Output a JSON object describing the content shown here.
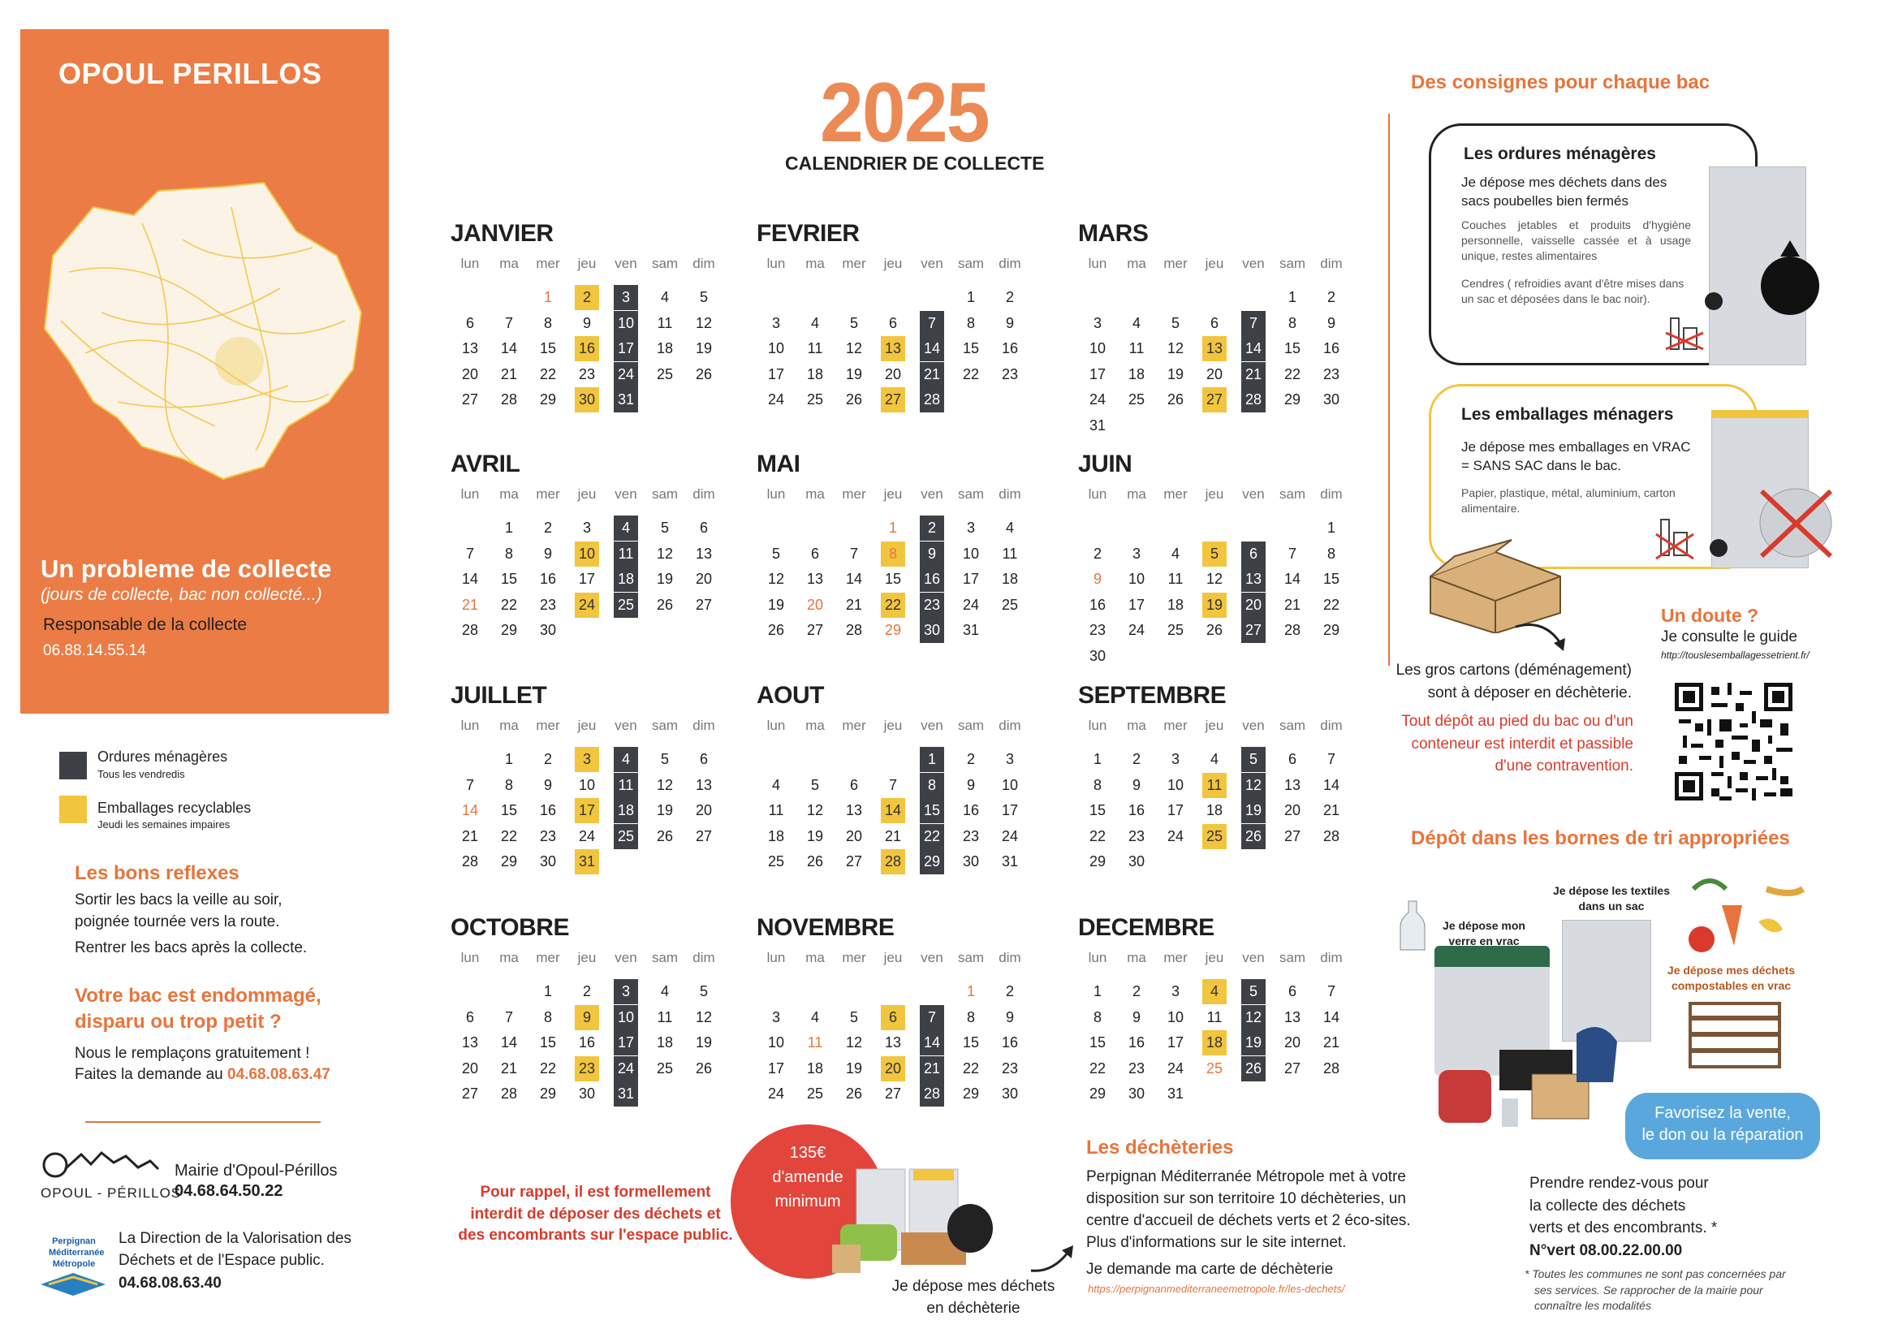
{
  "left": {
    "town": "OPOUL PERILLOS",
    "probleme_title": "Un probleme de collecte",
    "probleme_sub": "(jours de collecte, bac non collecté...)",
    "responsable": "Responsable de la collecte",
    "responsable_phone": "06.88.14.55.14",
    "legend": [
      {
        "label": "Ordures ménagères",
        "sub": "Tous les vendredis",
        "color": "#3d4146"
      },
      {
        "label": "Emballages recyclables",
        "sub": "Jeudi les semaines impaires",
        "color": "#f2c53f"
      }
    ],
    "bons_reflexes_title": "Les bons reflexes",
    "bons_reflexes_1": "Sortir les bacs la veille au soir,",
    "bons_reflexes_2": "poignée tournée vers la route.",
    "bons_reflexes_3": "Rentrer les bacs après la collecte.",
    "bac_title_1": "Votre bac est endommagé,",
    "bac_title_2": "disparu ou trop petit ?",
    "bac_text_1": "Nous le remplaçons gratuitement !",
    "bac_text_2": "Faites la demande au",
    "bac_phone": "04.68.08.63.47",
    "mairie_logo_text": "OPOUL - PÉRILLOS",
    "mairie_name": "Mairie d'Opoul-Périllos",
    "mairie_phone": "04.68.64.50.22",
    "pmm_logo_1": "Perpignan",
    "pmm_logo_2": "Méditerranée",
    "pmm_logo_3": "Métropole",
    "direction_1": "La Direction de la Valorisation des",
    "direction_2": "Déchets et de l'Espace public.",
    "direction_phone": "04.68.08.63.40"
  },
  "header": {
    "year": "2025",
    "subtitle": "CALENDRIER DE COLLECTE"
  },
  "dow": [
    "lun",
    "ma",
    "mer",
    "jeu",
    "ven",
    "sam",
    "dim"
  ],
  "months": [
    {
      "name": "JANVIER",
      "start": 2,
      "days": 31,
      "em": [
        2,
        16,
        30
      ],
      "om": [
        3,
        10,
        17,
        24,
        31
      ],
      "ferie": [
        1
      ]
    },
    {
      "name": "FEVRIER",
      "start": 5,
      "days": 28,
      "em": [
        13,
        27
      ],
      "om": [
        7,
        14,
        21,
        28
      ],
      "ferie": []
    },
    {
      "name": "MARS",
      "start": 5,
      "days": 31,
      "em": [
        13,
        27
      ],
      "om": [
        7,
        14,
        21,
        28
      ],
      "ferie": []
    },
    {
      "name": "AVRIL",
      "start": 1,
      "days": 30,
      "em": [
        10,
        24
      ],
      "om": [
        4,
        11,
        18,
        25
      ],
      "ferie": [
        21
      ]
    },
    {
      "name": "MAI",
      "start": 3,
      "days": 31,
      "em": [
        8,
        22
      ],
      "om": [
        2,
        9,
        16,
        23,
        30
      ],
      "ferie": [
        1,
        8,
        20,
        29
      ]
    },
    {
      "name": "JUIN",
      "start": 6,
      "days": 30,
      "em": [
        5,
        19
      ],
      "om": [
        6,
        13,
        20,
        27
      ],
      "ferie": [
        9
      ]
    },
    {
      "name": "JUILLET",
      "start": 1,
      "days": 31,
      "em": [
        3,
        17,
        31
      ],
      "om": [
        4,
        11,
        18,
        25
      ],
      "ferie": [
        14
      ]
    },
    {
      "name": "AOUT",
      "start": 4,
      "days": 31,
      "em": [
        14,
        28
      ],
      "om": [
        1,
        8,
        15,
        22,
        29
      ],
      "ferie": [
        15
      ]
    },
    {
      "name": "SEPTEMBRE",
      "start": 0,
      "days": 30,
      "em": [
        11,
        25
      ],
      "om": [
        5,
        12,
        19,
        26
      ],
      "ferie": []
    },
    {
      "name": "OCTOBRE",
      "start": 2,
      "days": 31,
      "em": [
        9,
        23
      ],
      "om": [
        3,
        10,
        17,
        24,
        31
      ],
      "ferie": []
    },
    {
      "name": "NOVEMBRE",
      "start": 5,
      "days": 30,
      "em": [
        6,
        20
      ],
      "om": [
        7,
        14,
        21,
        28
      ],
      "ferie": [
        1,
        11
      ]
    },
    {
      "name": "DECEMBRE",
      "start": 0,
      "days": 31,
      "em": [
        4,
        18
      ],
      "om": [
        5,
        12,
        19,
        26
      ],
      "ferie": [
        25
      ]
    }
  ],
  "right": {
    "consignes_title": "Des consignes pour chaque bac",
    "om_card_title": "Les ordures ménagères",
    "om_card_text": "Je dépose mes déchets dans des sacs poubelles bien fermés",
    "om_card_small_1": "Couches jetables et produits d'hygiène personnelle, vaisselle cassée et à usage unique, restes alimentaires",
    "om_card_small_2": "Cendres ( refroidies avant d'être mises dans un sac et déposées dans le bac noir).",
    "em_card_title": "Les emballages ménagers",
    "em_card_text": "Je dépose mes emballages en VRAC = SANS SAC dans le bac.",
    "em_card_small": "Papier, plastique, métal, aluminium, carton alimentaire.",
    "cartons_1": "Les gros cartons (déménagement)",
    "cartons_2": "sont à déposer en déchèterie.",
    "depot_1": "Tout dépôt au pied du bac ou d'un",
    "depot_2": "conteneur est interdit et passible",
    "depot_3": "d'une contravention.",
    "doute_title": "Un doute ?",
    "doute_text": "Je consulte le guide",
    "doute_url": "http://touslesemballagessetrient.fr/",
    "bornes_title": "Dépôt dans les bornes de tri appropriées",
    "verre_1": "Je dépose mon",
    "verre_2": "verre en vrac",
    "textiles_1": "Je dépose les textiles",
    "textiles_2": "dans un sac",
    "compost_1": "Je dépose mes déchets",
    "compost_2": "compostables en vrac",
    "favorisez_1": "Favorisez la vente,",
    "favorisez_2": "le don ou la réparation",
    "rdv_1": "Prendre rendez-vous pour",
    "rdv_2": "la collecte des déchets",
    "rdv_3": "verts et des encombrants. *",
    "rdv_phone": "N°vert 08.00.22.00.00",
    "note_1": "* Toutes les communes ne sont pas concernées par",
    "note_2": "ses services. Se rapprocher de la mairie pour",
    "note_3": "connaître les modalités"
  },
  "bottom": {
    "rappel_1": "Pour rappel, il est formellement",
    "rappel_2": "interdit de déposer des déchets et",
    "rappel_3": "des encombrants sur l'espace public.",
    "amende_1": "135€",
    "amende_2": "d'amende",
    "amende_3": "minimum",
    "decheterie_caption_1": "Je dépose mes déchets",
    "decheterie_caption_2": "en déchèterie",
    "decheteries_title": "Les déchèteries",
    "decheteries_1": "Perpignan Méditerranée Métropole met à votre",
    "decheteries_2": "disposition sur son territoire 10 déchèteries, un",
    "decheteries_3": "centre d'accueil de déchets verts et 2 éco-sites.",
    "decheteries_4": "Plus d'informations sur le site internet.",
    "carte": "Je demande ma carte de déchèterie",
    "carte_url": "https://perpignanmediterraneemetropole.fr/les-dechets/"
  }
}
